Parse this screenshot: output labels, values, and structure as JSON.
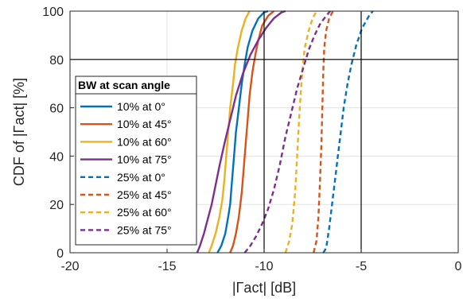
{
  "chart_data": {
    "type": "line",
    "title": "",
    "xlabel": "|Γact| [dB]",
    "ylabel": "CDF of |Γact| [%]",
    "xlim": [
      -20,
      0
    ],
    "ylim": [
      0,
      100
    ],
    "xticks": [
      -20,
      -15,
      -10,
      -5,
      0
    ],
    "yticks": [
      0,
      20,
      40,
      60,
      80,
      100
    ],
    "xtick_labels": [
      "-20",
      "-15",
      "-10",
      "-5",
      "0"
    ],
    "ytick_labels": [
      "0",
      "20",
      "40",
      "60",
      "80",
      "100"
    ],
    "grid": true,
    "legend_title": "BW at scan angle",
    "legend_position": "left",
    "reference_lines": {
      "x": [
        -10,
        -5
      ],
      "y": [
        80
      ]
    },
    "series": [
      {
        "name": "10% at 0°",
        "color": "#0072BD",
        "dash": "solid",
        "points": [
          [
            -12.4,
            0
          ],
          [
            -12.2,
            3
          ],
          [
            -12.0,
            8
          ],
          [
            -11.85,
            15
          ],
          [
            -11.75,
            20
          ],
          [
            -11.65,
            30
          ],
          [
            -11.55,
            40
          ],
          [
            -11.45,
            50
          ],
          [
            -11.3,
            60
          ],
          [
            -11.15,
            70
          ],
          [
            -11.0,
            78
          ],
          [
            -10.85,
            85
          ],
          [
            -10.6,
            92
          ],
          [
            -10.3,
            97
          ],
          [
            -10.0,
            99.5
          ],
          [
            -9.8,
            100
          ]
        ]
      },
      {
        "name": "10% at 45°",
        "color": "#D95319",
        "dash": "solid",
        "points": [
          [
            -11.75,
            0
          ],
          [
            -11.6,
            3
          ],
          [
            -11.45,
            8
          ],
          [
            -11.3,
            15
          ],
          [
            -11.15,
            25
          ],
          [
            -11.05,
            35
          ],
          [
            -10.95,
            45
          ],
          [
            -10.85,
            55
          ],
          [
            -10.75,
            65
          ],
          [
            -10.6,
            75
          ],
          [
            -10.45,
            82
          ],
          [
            -10.3,
            88
          ],
          [
            -10.1,
            94
          ],
          [
            -9.8,
            98
          ],
          [
            -9.5,
            100
          ]
        ]
      },
      {
        "name": "10% at 60°",
        "color": "#EDB120",
        "dash": "solid",
        "points": [
          [
            -12.85,
            0
          ],
          [
            -12.7,
            3
          ],
          [
            -12.5,
            8
          ],
          [
            -12.3,
            15
          ],
          [
            -12.15,
            22
          ],
          [
            -12.05,
            30
          ],
          [
            -11.95,
            40
          ],
          [
            -11.85,
            50
          ],
          [
            -11.75,
            60
          ],
          [
            -11.6,
            70
          ],
          [
            -11.5,
            78
          ],
          [
            -11.35,
            85
          ],
          [
            -11.15,
            92
          ],
          [
            -10.95,
            97
          ],
          [
            -10.75,
            100
          ]
        ]
      },
      {
        "name": "10% at 75°",
        "color": "#7E2F8E",
        "dash": "solid",
        "points": [
          [
            -13.45,
            0
          ],
          [
            -13.3,
            3
          ],
          [
            -13.1,
            8
          ],
          [
            -12.9,
            14
          ],
          [
            -12.7,
            20
          ],
          [
            -12.5,
            28
          ],
          [
            -12.3,
            36
          ],
          [
            -12.05,
            45
          ],
          [
            -11.75,
            55
          ],
          [
            -11.45,
            65
          ],
          [
            -11.1,
            74
          ],
          [
            -10.7,
            82
          ],
          [
            -10.3,
            88
          ],
          [
            -9.9,
            93
          ],
          [
            -9.5,
            97
          ],
          [
            -9.1,
            99.5
          ],
          [
            -8.9,
            100
          ]
        ]
      },
      {
        "name": "25% at 0°",
        "color": "#0072BD",
        "dash": "dashed",
        "points": [
          [
            -6.95,
            0
          ],
          [
            -6.8,
            2
          ],
          [
            -6.65,
            10
          ],
          [
            -6.5,
            20
          ],
          [
            -6.35,
            30
          ],
          [
            -6.2,
            40
          ],
          [
            -6.05,
            50
          ],
          [
            -5.9,
            60
          ],
          [
            -5.7,
            70
          ],
          [
            -5.5,
            78
          ],
          [
            -5.25,
            86
          ],
          [
            -4.95,
            93
          ],
          [
            -4.6,
            98
          ],
          [
            -4.4,
            100
          ]
        ]
      },
      {
        "name": "25% at 45°",
        "color": "#D95319",
        "dash": "dashed",
        "points": [
          [
            -7.45,
            0
          ],
          [
            -7.3,
            5
          ],
          [
            -7.2,
            15
          ],
          [
            -7.12,
            30
          ],
          [
            -7.05,
            45
          ],
          [
            -7.0,
            60
          ],
          [
            -6.95,
            75
          ],
          [
            -6.9,
            85
          ],
          [
            -6.8,
            92
          ],
          [
            -6.65,
            97
          ],
          [
            -6.45,
            100
          ]
        ]
      },
      {
        "name": "25% at 60°",
        "color": "#EDB120",
        "dash": "dashed",
        "points": [
          [
            -8.9,
            0
          ],
          [
            -8.7,
            5
          ],
          [
            -8.55,
            12
          ],
          [
            -8.4,
            25
          ],
          [
            -8.3,
            40
          ],
          [
            -8.2,
            55
          ],
          [
            -8.1,
            68
          ],
          [
            -8.0,
            78
          ],
          [
            -7.9,
            85
          ],
          [
            -7.7,
            92
          ],
          [
            -7.5,
            97
          ],
          [
            -7.3,
            100
          ]
        ]
      },
      {
        "name": "25% at 75°",
        "color": "#7E2F8E",
        "dash": "dashed",
        "points": [
          [
            -11.0,
            0
          ],
          [
            -10.7,
            3
          ],
          [
            -10.4,
            7
          ],
          [
            -10.1,
            12
          ],
          [
            -9.8,
            18
          ],
          [
            -9.5,
            26
          ],
          [
            -9.2,
            36
          ],
          [
            -8.9,
            48
          ],
          [
            -8.6,
            58
          ],
          [
            -8.3,
            68
          ],
          [
            -8.0,
            76
          ],
          [
            -7.7,
            84
          ],
          [
            -7.4,
            90
          ],
          [
            -7.1,
            95
          ],
          [
            -6.8,
            98
          ],
          [
            -6.6,
            100
          ]
        ]
      }
    ]
  }
}
